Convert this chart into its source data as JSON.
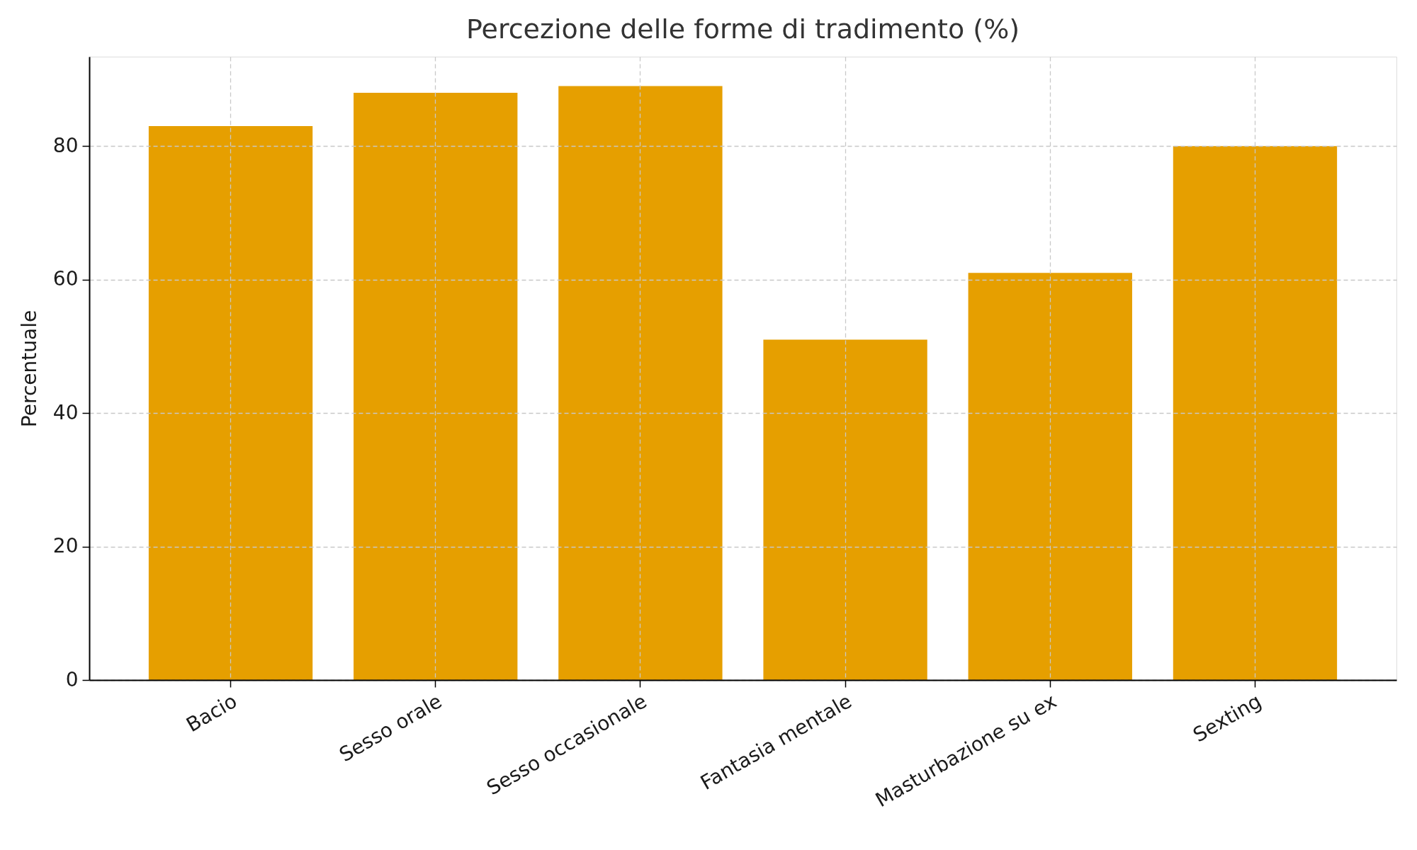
{
  "chart_data": {
    "type": "bar",
    "title": "Percezione delle forme di tradimento (%)",
    "ylabel": "Percentuale",
    "categories": [
      "Bacio",
      "Sesso orale",
      "Sesso occasionale",
      "Fantasia mentale",
      "Masturbazione su ex",
      "Sexting"
    ],
    "values": [
      83,
      88,
      89,
      51,
      61,
      80
    ],
    "color": "#e69f00",
    "ylim": [
      0,
      93.4
    ],
    "yticks": [
      0,
      20,
      40,
      60,
      80
    ],
    "grid": true
  }
}
